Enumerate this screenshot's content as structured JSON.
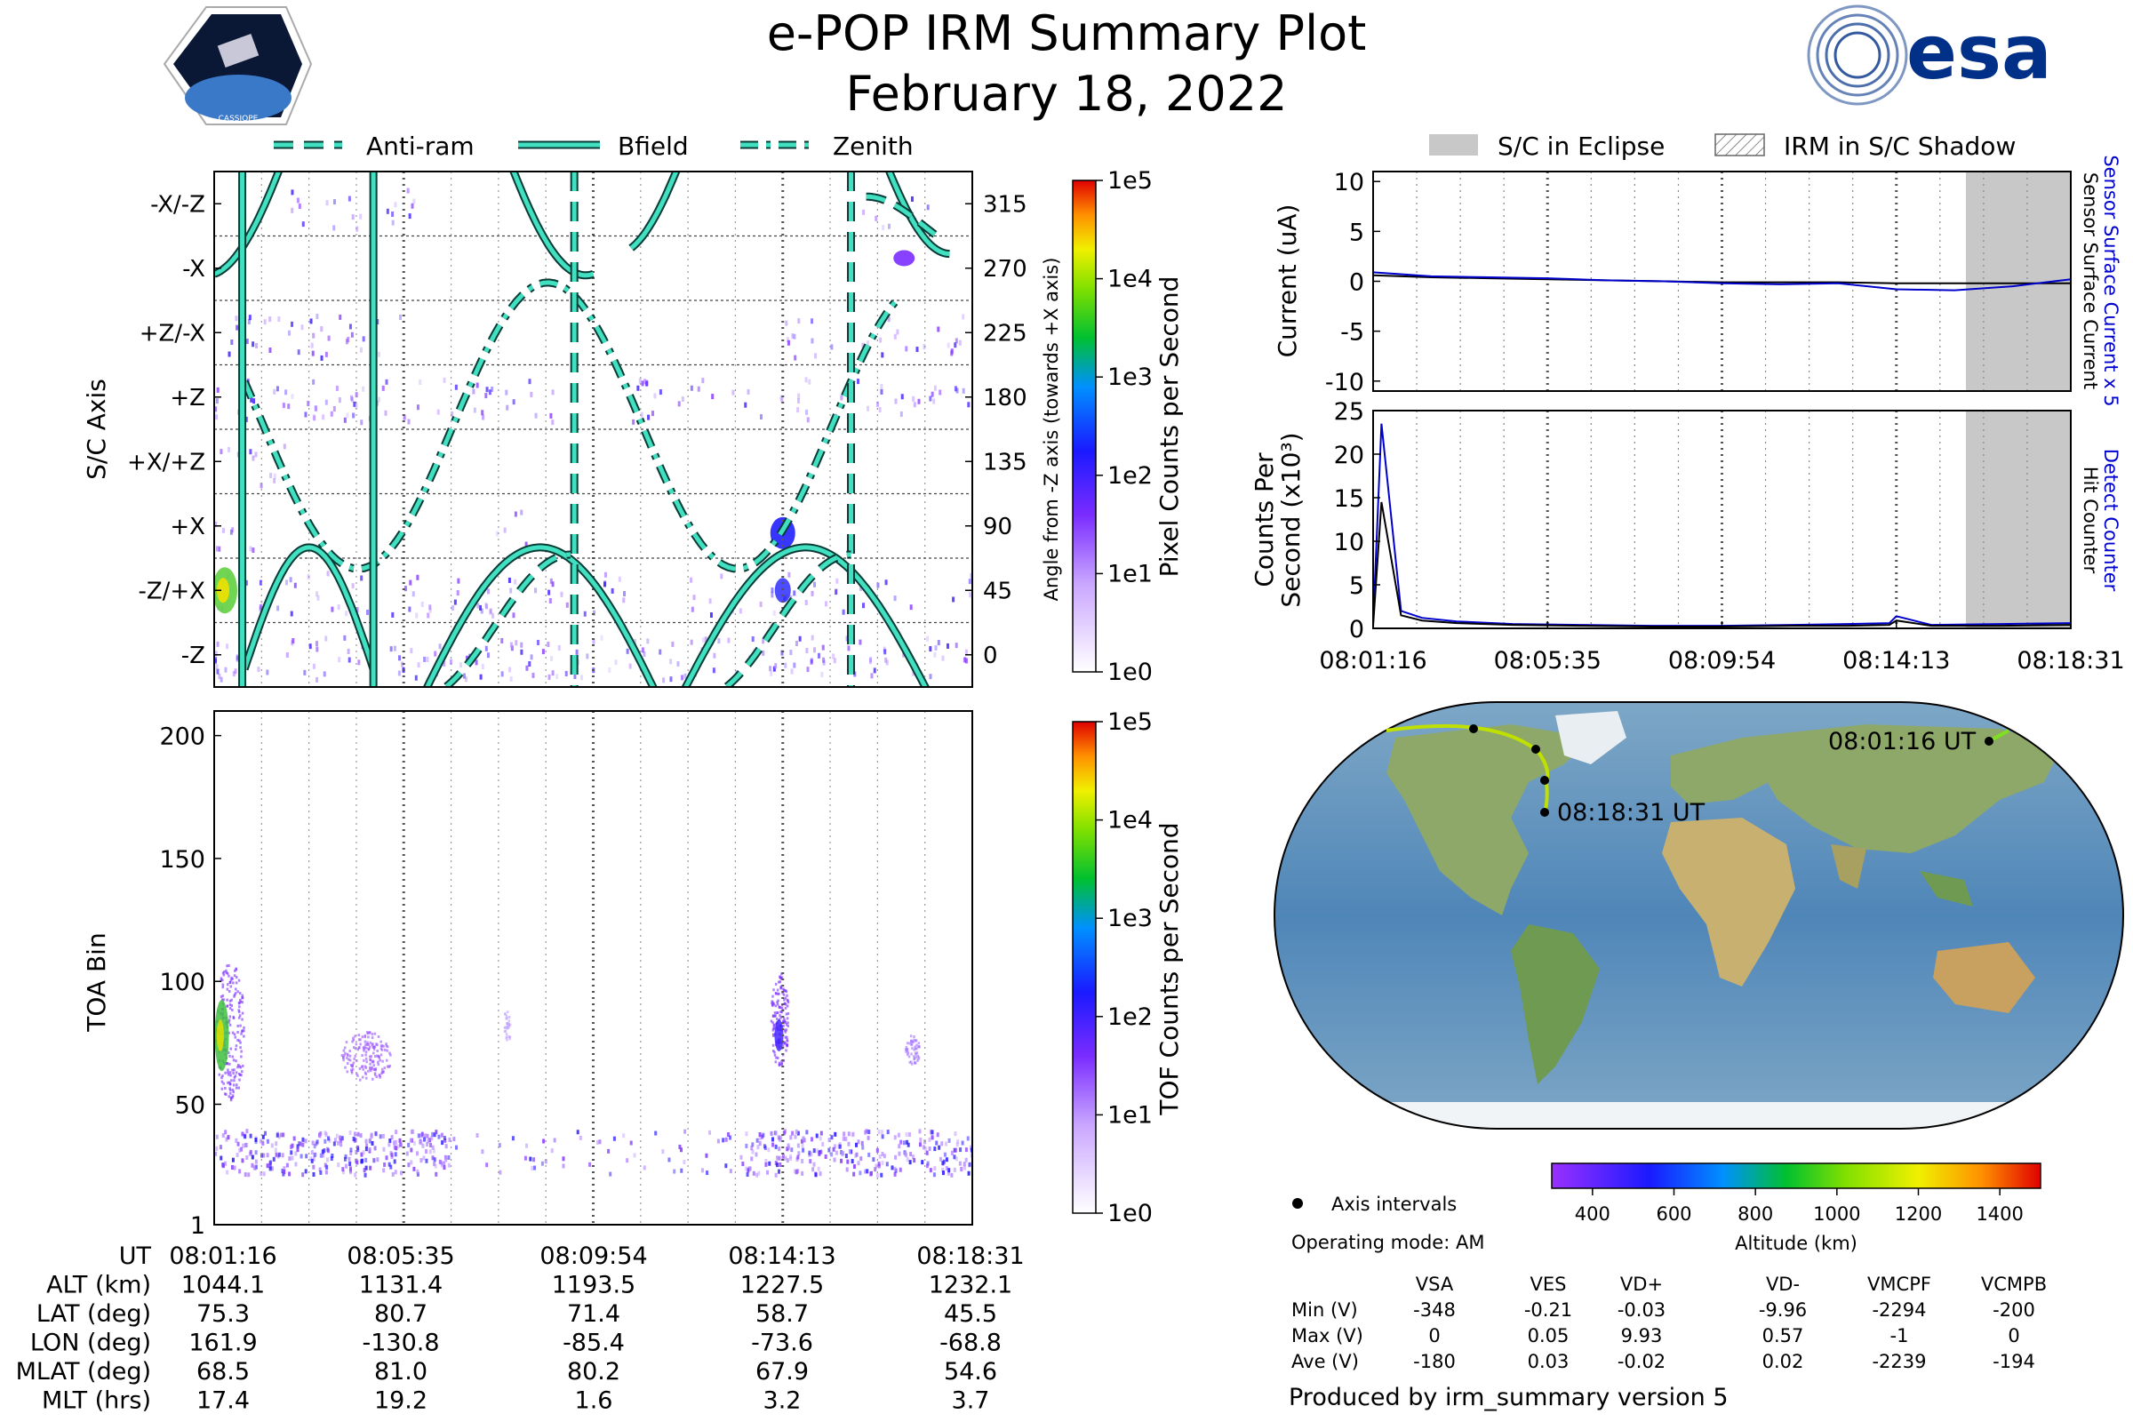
{
  "header": {
    "title": "e-POP IRM Summary Plot",
    "date": "February 18, 2022",
    "cassiope_label": "CASSIOPE",
    "esa_label": "esa"
  },
  "colors": {
    "accent_teal": "#40e0c0",
    "curve_dark": "#0a3a36",
    "esa_blue": "#003087",
    "eclipse_gray": "#c8c8c8",
    "trace_blue": "#0000cc"
  },
  "legend_left": [
    {
      "label": "Anti-ram",
      "style": "dashed"
    },
    {
      "label": "Bfield",
      "style": "solid"
    },
    {
      "label": "Zenith",
      "style": "dashdot"
    }
  ],
  "legend_right": [
    {
      "label": "S/C in Eclipse",
      "style": "gray-fill"
    },
    {
      "label": "IRM in S/C Shadow",
      "style": "hatch"
    }
  ],
  "time_ticks": [
    "08:01:16",
    "08:05:35",
    "08:09:54",
    "08:14:13",
    "08:18:31"
  ],
  "chart_data": [
    {
      "id": "pixel_panel",
      "type": "heatmap",
      "ylabel": "S/C Axis",
      "ylabel_right": "Angle from -Z axis (towards +X axis)",
      "y_categories": [
        "-X/-Z",
        "-X",
        "+Z/-X",
        "+Z",
        "+X/+Z",
        "+X",
        "-Z/+X",
        "-Z"
      ],
      "y_right_ticks": [
        315,
        270,
        225,
        180,
        135,
        90,
        45,
        0
      ],
      "ylim": [
        -22.5,
        337.5
      ],
      "colorbar": {
        "label": "Pixel Counts per Second",
        "ticks": [
          "1e0",
          "1e1",
          "1e2",
          "1e3",
          "1e4",
          "1e5"
        ]
      },
      "curves": [
        {
          "name": "Bfield",
          "style": "solid"
        },
        {
          "name": "Anti-ram",
          "style": "dashed"
        },
        {
          "name": "Zenith",
          "style": "dashdot"
        }
      ]
    },
    {
      "id": "tof_panel",
      "type": "heatmap",
      "ylabel": "TOA Bin",
      "y_ticks": [
        1,
        50,
        100,
        150,
        200
      ],
      "ylim": [
        1,
        210
      ],
      "colorbar": {
        "label": "TOF Counts per Second",
        "ticks": [
          "1e0",
          "1e1",
          "1e2",
          "1e3",
          "1e4",
          "1e5"
        ]
      }
    },
    {
      "id": "current_panel",
      "type": "line",
      "ylabel": "Current (uA)",
      "y_ticks": [
        10,
        5,
        0,
        -5,
        -10
      ],
      "ylim": [
        -11,
        11
      ],
      "right_label_1": "Sensor Surface Current x 5",
      "right_label_2": "Sensor Surface Current",
      "eclipse_start_fraction": 0.85,
      "series": [
        {
          "name": "Sensor Surface Current",
          "color": "#000000",
          "values": [
            0.6,
            0.4,
            0.3,
            0.2,
            0.1,
            0.0,
            -0.1,
            -0.1,
            -0.1,
            -0.2,
            -0.2,
            -0.2,
            -0.2
          ]
        },
        {
          "name": "Sensor Surface Current x 5",
          "color": "#0000cc",
          "values": [
            0.9,
            0.5,
            0.4,
            0.3,
            0.1,
            0.0,
            -0.2,
            -0.3,
            -0.2,
            -0.8,
            -0.9,
            -0.5,
            0.2
          ]
        }
      ]
    },
    {
      "id": "counts_panel",
      "type": "line",
      "ylabel": "Counts Per Second (x10³)",
      "y_ticks": [
        0,
        5,
        10,
        15,
        20,
        25
      ],
      "ylim": [
        0,
        25
      ],
      "right_label_1": "Detect Counter",
      "right_label_2": "Hit Counter",
      "eclipse_start_fraction": 0.85,
      "series": [
        {
          "name": "Detect Counter",
          "color": "#0000cc",
          "values": [
            0.5,
            23.5,
            2.0,
            1.2,
            0.8,
            0.5,
            0.4,
            0.3,
            0.3,
            0.4,
            0.5,
            0.6,
            1.4,
            0.4,
            0.5,
            0.6
          ]
        },
        {
          "name": "Hit Counter",
          "color": "#000000",
          "values": [
            0.3,
            14.5,
            1.5,
            0.9,
            0.6,
            0.4,
            0.3,
            0.2,
            0.2,
            0.3,
            0.3,
            0.4,
            0.9,
            0.3,
            0.3,
            0.4
          ]
        }
      ]
    },
    {
      "id": "altitude_colorbar",
      "type": "colorbar",
      "label": "Altitude (km)",
      "ticks": [
        400,
        600,
        800,
        1000,
        1200,
        1400
      ],
      "range": [
        300,
        1500
      ]
    }
  ],
  "map": {
    "start_label": "08:01:16 UT",
    "end_label": "08:18:31 UT",
    "legend_label": "Axis intervals"
  },
  "operating_mode": "Operating mode: AM",
  "voltage_table": {
    "columns": [
      "VSA",
      "VES",
      "VD+",
      "VD-",
      "VMCPF",
      "VCMPB"
    ],
    "rows": [
      {
        "label": "Min (V)",
        "values": [
          "-348",
          "-0.21",
          "-0.03",
          "-9.96",
          "-2294",
          "-200"
        ]
      },
      {
        "label": "Max (V)",
        "values": [
          "0",
          "0.05",
          "9.93",
          "0.57",
          "-1",
          "0"
        ]
      },
      {
        "label": "Ave (V)",
        "values": [
          "-180",
          "0.03",
          "-0.02",
          "0.02",
          "-2239",
          "-194"
        ]
      }
    ]
  },
  "ephemeris": {
    "rows": [
      {
        "label": "UT",
        "values": [
          "08:01:16",
          "08:05:35",
          "08:09:54",
          "08:14:13",
          "08:18:31"
        ]
      },
      {
        "label": "ALT (km)",
        "values": [
          "1044.1",
          "1131.4",
          "1193.5",
          "1227.5",
          "1232.1"
        ]
      },
      {
        "label": "LAT (deg)",
        "values": [
          "75.3",
          "80.7",
          "71.4",
          "58.7",
          "45.5"
        ]
      },
      {
        "label": "LON (deg)",
        "values": [
          "161.9",
          "-130.8",
          "-85.4",
          "-73.6",
          "-68.8"
        ]
      },
      {
        "label": "MLAT (deg)",
        "values": [
          "68.5",
          "81.0",
          "80.2",
          "67.9",
          "54.6"
        ]
      },
      {
        "label": "MLT (hrs)",
        "values": [
          "17.4",
          "19.2",
          "1.6",
          "3.2",
          "3.7"
        ]
      }
    ]
  },
  "footer": "Produced by irm_summary version 5"
}
